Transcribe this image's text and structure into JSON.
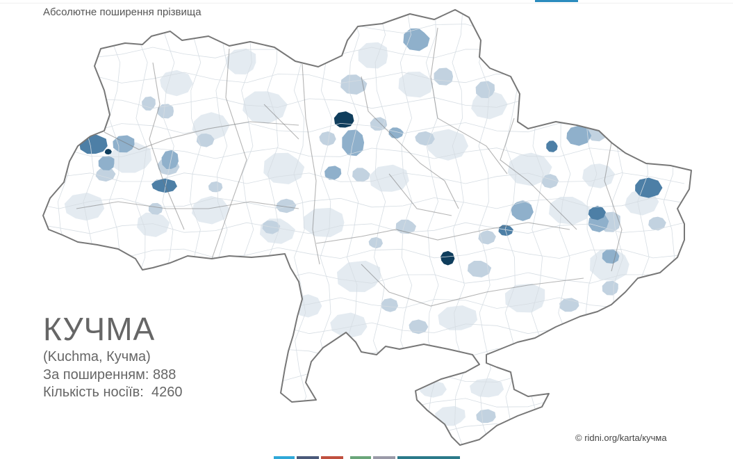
{
  "header": {
    "title": "Абсолютне поширення прізвища"
  },
  "surname": {
    "name": "КУЧМА",
    "variants": "(Kuchma, Кучма)",
    "rank_line": "За поширенням: 888",
    "count_line": "Кількість носіїв:  4260"
  },
  "credit": "© ridni.org/karta/кучма",
  "colors": {
    "border": "#777777",
    "district_line": "#d6dde3",
    "level_0": "#ffffff",
    "level_1": "#e4ebf1",
    "level_2": "#c2d2e0",
    "level_3": "#8fb0cb",
    "level_4": "#4d7fa6",
    "level_5": "#0f3d5c",
    "top_accent": "#2b8cbe"
  },
  "bottom_tabs": [
    {
      "color": "#2fa8d8"
    },
    {
      "color": "#4a5a7a"
    },
    {
      "color": "#c0503f"
    },
    {
      "color": "#6aa67a"
    },
    {
      "color": "#9a9aa8"
    },
    {
      "color": "#2b7a8a"
    }
  ]
}
